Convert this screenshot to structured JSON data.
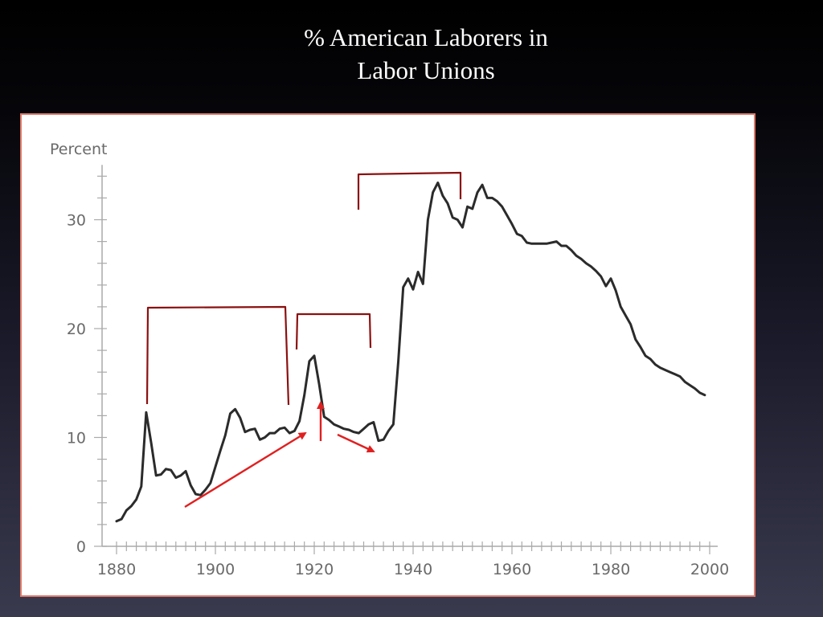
{
  "slide": {
    "title_line1": "% American Laborers in",
    "title_line2": "Labor Unions"
  },
  "chart_data": {
    "type": "line",
    "title": "% American Laborers in Labor Unions",
    "ylabel": "Percent",
    "xlabel": "",
    "xlim": [
      1880,
      2000
    ],
    "ylim": [
      0,
      34
    ],
    "x_ticks": [
      1880,
      1900,
      1920,
      1940,
      1960,
      1980,
      2000
    ],
    "y_ticks": [
      0,
      10,
      20,
      30
    ],
    "grid": false,
    "line_color": "#2b2b2b",
    "annotation_color": "#8b1010",
    "arrow_color": "#e02020",
    "series": [
      {
        "x": [
          1880,
          1881,
          1882,
          1883,
          1884,
          1885,
          1886,
          1887,
          1888,
          1889,
          1890,
          1891,
          1892,
          1893,
          1894,
          1895,
          1896,
          1897,
          1898,
          1899,
          1900,
          1901,
          1902,
          1903,
          1904,
          1905,
          1906,
          1907,
          1908,
          1909,
          1910,
          1911,
          1912,
          1913,
          1914,
          1915,
          1916,
          1917,
          1918,
          1919,
          1920,
          1921,
          1922,
          1923,
          1924,
          1925,
          1926,
          1927,
          1928,
          1929,
          1930,
          1931,
          1932,
          1933,
          1934,
          1935,
          1936,
          1937,
          1938,
          1939,
          1940,
          1941,
          1942,
          1943,
          1944,
          1945,
          1946,
          1947,
          1948,
          1949,
          1950,
          1951,
          1952,
          1953,
          1954,
          1955,
          1956,
          1957,
          1958,
          1959,
          1960,
          1961,
          1962,
          1963,
          1964,
          1965,
          1966,
          1967,
          1968,
          1969,
          1970,
          1971,
          1972,
          1973,
          1974,
          1975,
          1976,
          1977,
          1978,
          1979,
          1980,
          1981,
          1982,
          1983,
          1984,
          1985,
          1986,
          1987,
          1988,
          1989,
          1990,
          1991,
          1992,
          1993,
          1994,
          1995,
          1996,
          1997,
          1998,
          1999
        ],
        "values": [
          2.3,
          2.5,
          3.3,
          3.7,
          4.3,
          5.5,
          12.3,
          9.5,
          6.5,
          6.6,
          7.1,
          7.0,
          6.3,
          6.5,
          6.9,
          5.6,
          4.8,
          4.7,
          5.2,
          5.8,
          7.3,
          8.8,
          10.2,
          12.2,
          12.6,
          11.8,
          10.5,
          10.7,
          10.8,
          9.8,
          10.0,
          10.4,
          10.4,
          10.8,
          10.9,
          10.4,
          10.6,
          11.5,
          13.9,
          17.0,
          17.5,
          14.9,
          11.9,
          11.6,
          11.2,
          11.0,
          10.8,
          10.7,
          10.5,
          10.4,
          10.8,
          11.2,
          11.4,
          9.7,
          9.8,
          10.6,
          11.2,
          17.0,
          23.8,
          24.6,
          23.6,
          25.2,
          24.1,
          30.0,
          32.5,
          33.4,
          32.2,
          31.5,
          30.2,
          30.0,
          29.3,
          31.2,
          31.0,
          32.5,
          33.2,
          32.0,
          32.0,
          31.7,
          31.2,
          30.4,
          29.6,
          28.7,
          28.5,
          27.9,
          27.8,
          27.8,
          27.8,
          27.8,
          27.9,
          28.0,
          27.6,
          27.6,
          27.2,
          26.7,
          26.4,
          26.0,
          25.7,
          25.3,
          24.8,
          23.9,
          24.6,
          23.5,
          22.0,
          21.2,
          20.4,
          19.0,
          18.3,
          17.5,
          17.2,
          16.7,
          16.4,
          16.2,
          16.0,
          15.8,
          15.6,
          15.1,
          14.8,
          14.5,
          14.1,
          13.9
        ]
      }
    ]
  }
}
